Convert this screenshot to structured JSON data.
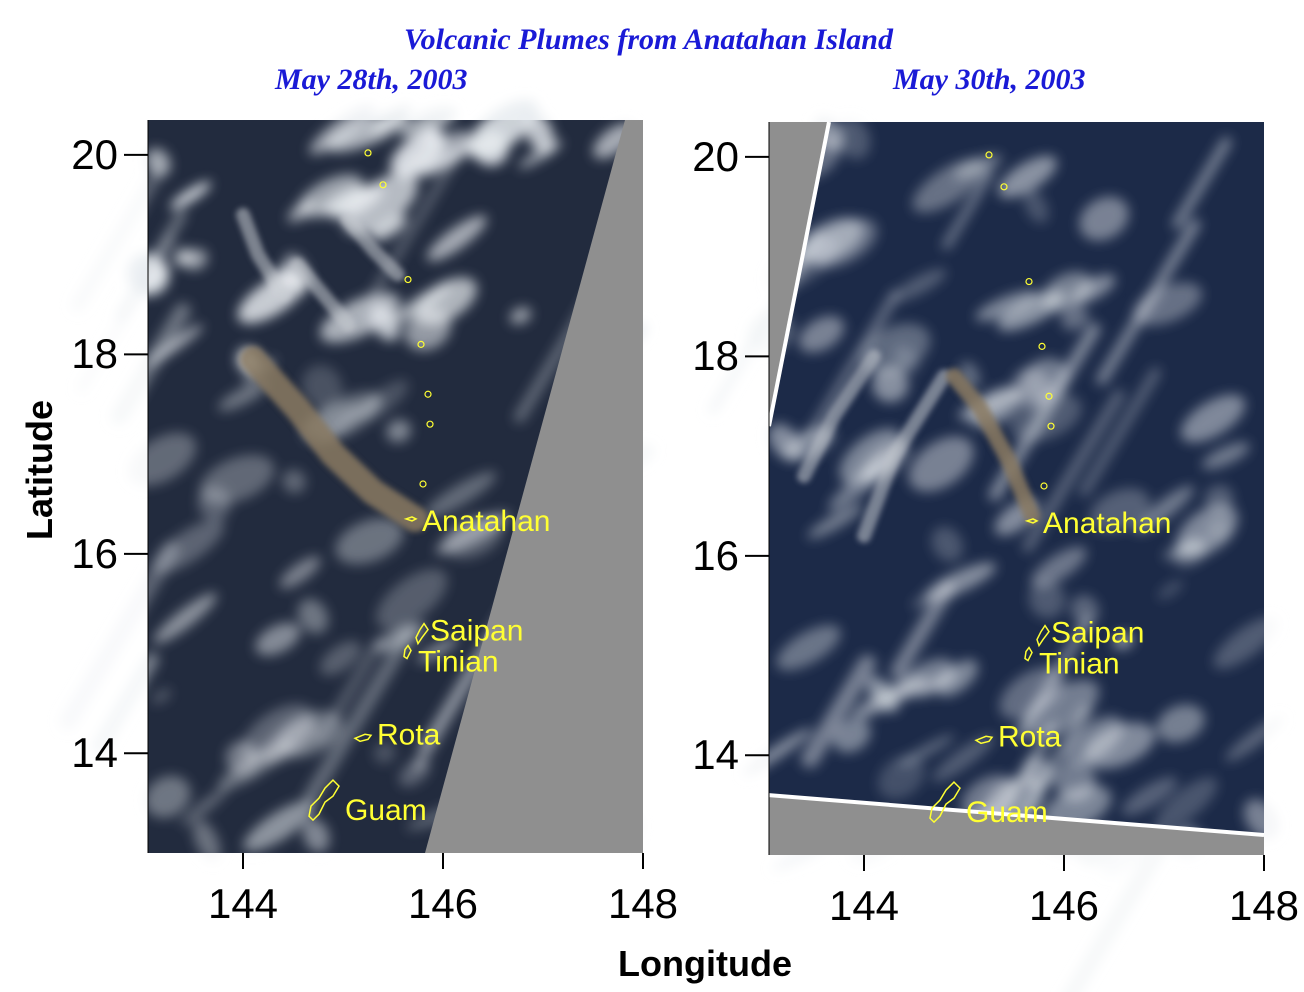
{
  "title": "Volcanic Plumes from Anatahan Island",
  "xlabel": "Longitude",
  "ylabel": "Latitude",
  "colors": {
    "title": "#1a1ad6",
    "coastline": "#ffff33",
    "label": "#ffff33",
    "ocean": "#1d2a44",
    "no_data": "#8f8f8f",
    "swath_edge": "#ffffff",
    "plume": "#8a7a60",
    "cloud": "#e8ecf0"
  },
  "axes": {
    "xlim": [
      143.05,
      148
    ],
    "ylim": [
      13.0,
      20.35
    ],
    "xticks": [
      "144",
      "146",
      "148"
    ],
    "yticks": [
      "20",
      "18",
      "16",
      "14"
    ],
    "xtick_values": [
      144,
      146,
      148
    ],
    "ytick_values": [
      20,
      18,
      16,
      14
    ]
  },
  "panels": [
    {
      "date": "May 28th, 2003",
      "no_data_region": [
        [
          148,
          20.35
        ],
        [
          147.82,
          20.35
        ],
        [
          145.82,
          13.0
        ],
        [
          148,
          13.0
        ]
      ],
      "islands": [
        {
          "name": "Anatahan",
          "lon": 145.67,
          "lat": 16.35
        },
        {
          "name": "Saipan",
          "lon": 145.75,
          "lat": 15.18
        },
        {
          "name": "Tinian",
          "lon": 145.63,
          "lat": 15.0
        },
        {
          "name": "Rota",
          "lon": 145.2,
          "lat": 14.15
        },
        {
          "name": "Guam",
          "lon": 144.78,
          "lat": 13.45
        }
      ],
      "plume_path": [
        [
          145.72,
          16.35
        ],
        [
          145.3,
          16.62
        ],
        [
          144.9,
          17.0
        ],
        [
          144.55,
          17.45
        ],
        [
          144.1,
          17.95
        ]
      ],
      "secondary_plumes": [
        [
          [
            145.55,
            18.8
          ],
          [
            145.3,
            19.05
          ],
          [
            145.05,
            19.35
          ]
        ],
        [
          [
            145.05,
            18.3
          ],
          [
            144.8,
            18.6
          ],
          [
            144.55,
            18.9
          ]
        ],
        [
          [
            144.4,
            18.6
          ],
          [
            144.15,
            19.0
          ],
          [
            144.0,
            19.4
          ]
        ]
      ]
    },
    {
      "date": "May 30th, 2003",
      "no_data_region": [
        [
          143.05,
          20.35
        ],
        [
          143.65,
          20.35
        ],
        [
          143.05,
          17.3
        ]
      ],
      "no_data_region_bottom": [
        [
          143.05,
          13.6
        ],
        [
          148,
          13.2
        ],
        [
          148,
          13.0
        ],
        [
          143.05,
          13.0
        ]
      ],
      "islands": [
        {
          "name": "Anatahan",
          "lon": 145.67,
          "lat": 16.35
        },
        {
          "name": "Saipan",
          "lon": 145.75,
          "lat": 15.18
        },
        {
          "name": "Tinian",
          "lon": 145.63,
          "lat": 15.0
        },
        {
          "name": "Rota",
          "lon": 145.2,
          "lat": 14.15
        },
        {
          "name": "Guam",
          "lon": 144.78,
          "lat": 13.45
        }
      ],
      "plume_path": [
        [
          145.68,
          16.4
        ],
        [
          145.45,
          16.95
        ],
        [
          145.15,
          17.5
        ],
        [
          144.9,
          17.8
        ]
      ],
      "secondary_plumes": [
        [
          [
            144.0,
            16.2
          ],
          [
            144.3,
            17.0
          ],
          [
            144.8,
            17.8
          ]
        ],
        [
          [
            143.4,
            16.8
          ],
          [
            143.7,
            17.4
          ],
          [
            144.1,
            18.0
          ]
        ]
      ]
    }
  ]
}
